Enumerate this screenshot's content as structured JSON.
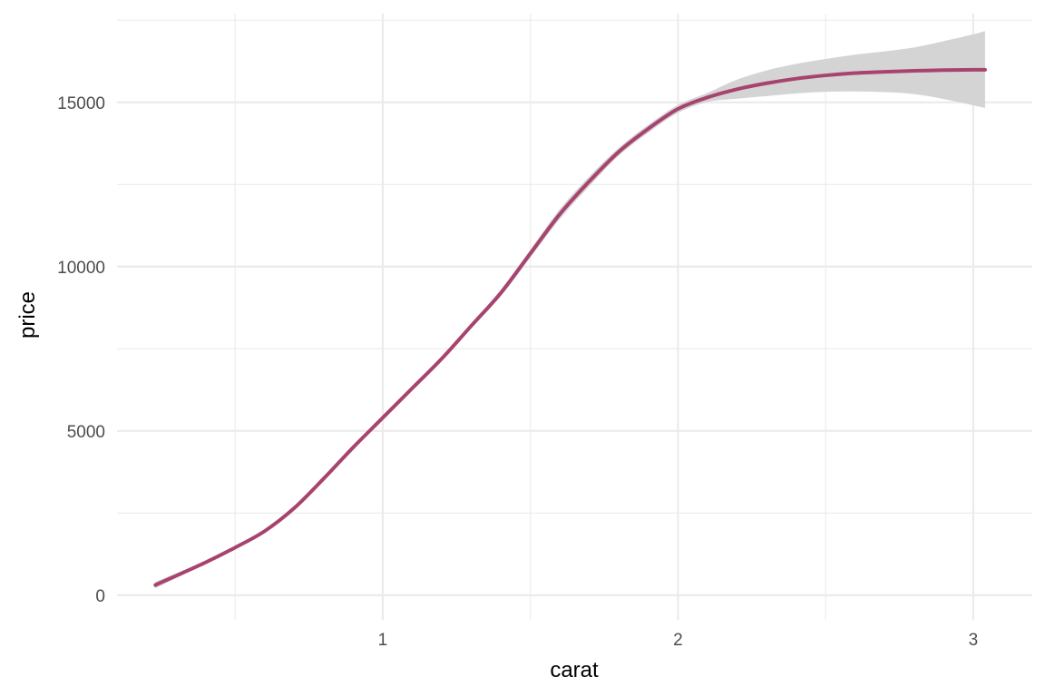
{
  "chart_data": {
    "type": "line",
    "title": "",
    "xlabel": "carat",
    "ylabel": "price",
    "xlim": [
      0.1,
      3.2
    ],
    "ylim": [
      -750,
      17700
    ],
    "x_ticks": [
      1,
      2,
      3
    ],
    "x_tick_labels": [
      "1",
      "2",
      "3"
    ],
    "x_minor_ticks": [
      0.5,
      1.5,
      2.5
    ],
    "y_ticks": [
      0,
      5000,
      10000,
      15000
    ],
    "y_tick_labels": [
      "0",
      "5000",
      "10000",
      "15000"
    ],
    "y_minor_ticks": [
      2500,
      7500,
      12500,
      17500
    ],
    "grid": true,
    "legend": "none",
    "colors": {
      "line": "#A8436F",
      "ribbon": "#d4d4d4",
      "grid": "#ebebeb"
    },
    "series": [
      {
        "x": [
          0.23,
          0.4,
          0.5,
          0.6,
          0.7,
          0.8,
          0.9,
          1.0,
          1.1,
          1.2,
          1.3,
          1.4,
          1.5,
          1.6,
          1.7,
          1.8,
          1.9,
          2.0,
          2.1,
          2.2,
          2.3,
          2.4,
          2.5,
          2.6,
          2.7,
          2.8,
          2.9,
          3.0,
          3.04
        ],
        "y": [
          310,
          1000,
          1450,
          1950,
          2650,
          3550,
          4500,
          5400,
          6300,
          7200,
          8200,
          9200,
          10400,
          11600,
          12600,
          13500,
          14200,
          14800,
          15150,
          15400,
          15580,
          15720,
          15820,
          15890,
          15930,
          15960,
          15980,
          15990,
          15990
        ],
        "ci_lower": [
          210,
          960,
          1420,
          1920,
          2620,
          3520,
          4470,
          5370,
          6270,
          7150,
          8130,
          9100,
          10280,
          11450,
          12450,
          13380,
          14080,
          14680,
          15010,
          15110,
          15190,
          15270,
          15320,
          15330,
          15310,
          15250,
          15100,
          14910,
          14830
        ],
        "ci_upper": [
          410,
          1040,
          1480,
          1980,
          2680,
          3580,
          4530,
          5430,
          6330,
          7250,
          8270,
          9300,
          10520,
          11750,
          12750,
          13620,
          14320,
          14920,
          15290,
          15690,
          15970,
          16170,
          16320,
          16450,
          16550,
          16670,
          16860,
          17070,
          17170
        ]
      }
    ]
  }
}
